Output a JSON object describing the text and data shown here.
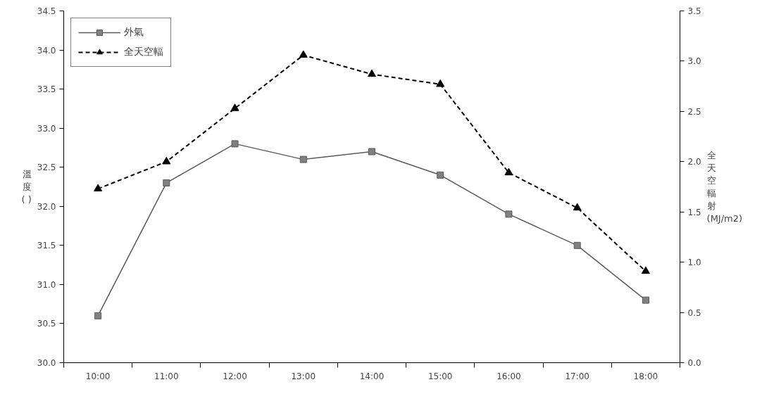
{
  "chart_data": {
    "type": "line",
    "categories": [
      "10:00",
      "11:00",
      "12:00",
      "13:00",
      "14:00",
      "15:00",
      "16:00",
      "17:00",
      "18:00"
    ],
    "ylabel": "溫度( )",
    "y2label": "全天空輻射(MJ/m2)",
    "ylim": [
      30.0,
      34.5
    ],
    "yticks": [
      {
        "value": 30.0,
        "label": "30.0"
      },
      {
        "value": 30.5,
        "label": "30.5"
      },
      {
        "value": 31.0,
        "label": "31.0"
      },
      {
        "value": 31.5,
        "label": "31.5"
      },
      {
        "value": 32.0,
        "label": "32.0"
      },
      {
        "value": 32.5,
        "label": "32.5"
      },
      {
        "value": 33.0,
        "label": "33.0"
      },
      {
        "value": 33.5,
        "label": "33.5"
      },
      {
        "value": 34.0,
        "label": "34.0"
      },
      {
        "value": 34.5,
        "label": "34.5"
      }
    ],
    "y2lim": [
      0.0,
      3.5
    ],
    "y2ticks": [
      {
        "value": 0.0,
        "label": "0.0"
      },
      {
        "value": 0.5,
        "label": "0.5"
      },
      {
        "value": 1.0,
        "label": "1.0"
      },
      {
        "value": 1.5,
        "label": "1.5"
      },
      {
        "value": 2.0,
        "label": "2.0"
      },
      {
        "value": 2.5,
        "label": "2.5"
      },
      {
        "value": 3.0,
        "label": "3.0"
      },
      {
        "value": 3.5,
        "label": "3.5"
      }
    ],
    "grid": false,
    "legend": "top left",
    "series": [
      {
        "name": "外氣",
        "color": "#595959",
        "marker": "square",
        "line_style": "solid",
        "values": [
          30.6,
          32.3,
          32.8,
          32.6,
          32.7,
          32.4,
          31.9,
          31.5,
          30.8
        ]
      },
      {
        "name": "全天空輻",
        "color": "#000000",
        "marker": "triangle",
        "line_style": "dashed",
        "axis": "y2",
        "values": [
          1.73,
          2.0,
          2.53,
          3.06,
          2.87,
          2.77,
          1.89,
          1.54,
          0.91
        ]
      }
    ]
  }
}
